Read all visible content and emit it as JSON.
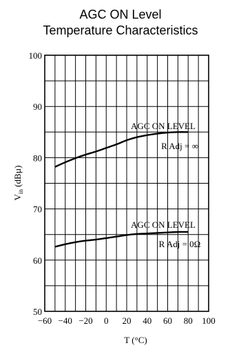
{
  "chart_data": {
    "type": "line",
    "title_lines": [
      "AGC ON Level",
      "Temperature Characteristics"
    ],
    "xlabel": "T (°C)",
    "ylabel_main": "V",
    "ylabel_sub": "in",
    "ylabel_unit": " (dBµ)",
    "xlim": [
      -60,
      100
    ],
    "ylim": [
      50,
      100
    ],
    "x_ticks": [
      -60,
      -40,
      -20,
      0,
      20,
      40,
      60,
      80,
      100
    ],
    "x_tick_labels": [
      "−60",
      "−40",
      "−20",
      "0",
      "20",
      "40",
      "60",
      "80",
      "100"
    ],
    "y_ticks": [
      50,
      60,
      70,
      80,
      90,
      100
    ],
    "y_tick_labels": [
      "50",
      "60",
      "70",
      "80",
      "90",
      "100"
    ],
    "x_grid_step": 10,
    "y_grid_step": 5,
    "grid": true,
    "series": [
      {
        "label_line1": "AGC ON LEVEL",
        "label_line2": "R Adj = ∞",
        "x": [
          -50,
          -40,
          -30,
          -20,
          -10,
          0,
          10,
          20,
          30,
          40,
          50,
          60,
          70,
          80
        ],
        "y": [
          78.2,
          79.1,
          79.9,
          80.6,
          81.2,
          81.9,
          82.6,
          83.4,
          84.0,
          84.4,
          84.7,
          84.9,
          85.0,
          85.0
        ]
      },
      {
        "label_line1": "AGC ON LEVEL",
        "label_line2": "R Adj = 0Ω",
        "x": [
          -50,
          -40,
          -30,
          -20,
          -10,
          0,
          10,
          20,
          30,
          40,
          50,
          60,
          70,
          80
        ],
        "y": [
          62.6,
          63.1,
          63.5,
          63.8,
          64.0,
          64.3,
          64.6,
          64.9,
          65.1,
          65.2,
          65.3,
          65.4,
          65.5,
          65.5
        ]
      }
    ]
  }
}
